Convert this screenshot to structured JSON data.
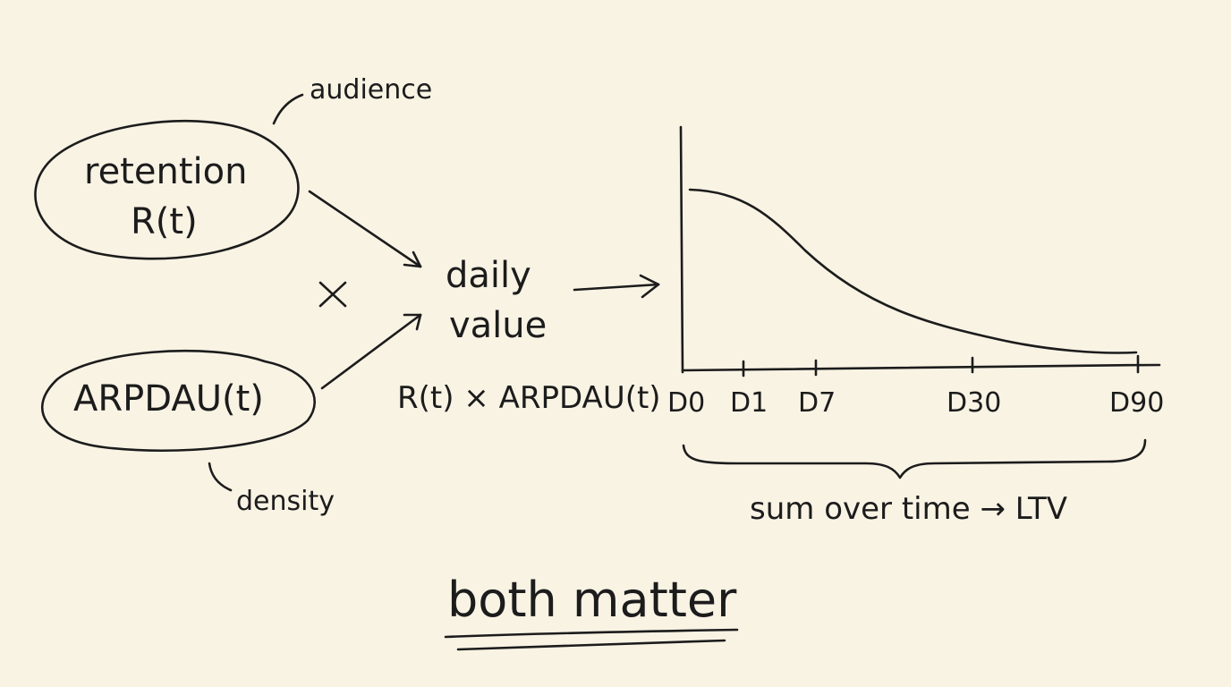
{
  "nodes": {
    "retention": {
      "line1": "retention",
      "line2": "R(t)",
      "note": "audience"
    },
    "arpdau": {
      "label": "ARPDAU(t)",
      "note": "density"
    },
    "multiply": "×",
    "daily_value": {
      "line1": "daily",
      "line2": "value",
      "formula": "R(t) × ARPDAU(t)"
    }
  },
  "chart_data": {
    "type": "line",
    "x_ticks": [
      "D0",
      "D1",
      "D7",
      "D30",
      "D90"
    ],
    "caption": "sum over time → LTV"
  },
  "footer": {
    "text": "both matter"
  },
  "colors": {
    "ink": "#1c1c1c",
    "paper": "#f9f3e4"
  }
}
